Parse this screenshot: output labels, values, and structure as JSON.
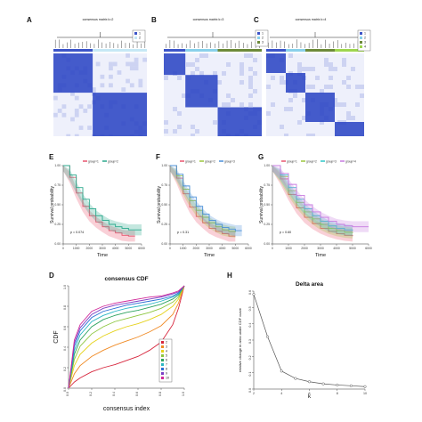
{
  "figure": {
    "panel_labels": [
      "A",
      "B",
      "C",
      "E",
      "F",
      "G",
      "D",
      "H"
    ]
  },
  "heatmaps": [
    {
      "title": "consensus matrix k=2",
      "legend": [
        "1",
        "2"
      ],
      "colors": [
        "#3d55c8",
        "#c6e8f5"
      ]
    },
    {
      "title": "consensus matrix k=3",
      "legend": [
        "1",
        "2",
        "3"
      ],
      "colors": [
        "#3d55c8",
        "#8ad1ea",
        "#6d8a3a"
      ]
    },
    {
      "title": "consensus matrix k=4",
      "legend": [
        "1",
        "2",
        "3",
        "4"
      ],
      "colors": [
        "#3d55c8",
        "#8ad1ea",
        "#6d8a3a",
        "#9ed64e"
      ]
    }
  ],
  "chart_data": [
    {
      "type": "line",
      "panel": "E",
      "xlabel": "Time",
      "ylabel": "Survival probability",
      "xlim": [
        0,
        6000
      ],
      "ylim": [
        0,
        1
      ],
      "x_ticks": [
        "0",
        "1000",
        "2000",
        "3000",
        "4000",
        "5000",
        "6000"
      ],
      "y_ticks": [
        "0.00",
        "0.25",
        "0.50",
        "0.75",
        "1.00"
      ],
      "legend": [
        "group=1",
        "group=2"
      ],
      "annotation": "p = 0.074",
      "series": [
        {
          "name": "group=1",
          "color": "#e8556f",
          "x": [
            0,
            500,
            1000,
            1500,
            2000,
            2500,
            3000,
            3500,
            4000,
            4500,
            5000,
            5500
          ],
          "values": [
            1.0,
            0.85,
            0.65,
            0.48,
            0.36,
            0.28,
            0.22,
            0.17,
            0.14,
            0.11,
            0.1,
            0.1
          ]
        },
        {
          "name": "group=2",
          "color": "#2aa88c",
          "x": [
            0,
            500,
            1000,
            1500,
            2000,
            2500,
            3000,
            3500,
            4000,
            4500,
            5000,
            5500,
            6000
          ],
          "values": [
            1.0,
            0.88,
            0.72,
            0.57,
            0.45,
            0.36,
            0.3,
            0.25,
            0.22,
            0.2,
            0.18,
            0.18,
            0.18
          ]
        }
      ]
    },
    {
      "type": "line",
      "panel": "F",
      "xlabel": "Time",
      "ylabel": "Survival probability",
      "xlim": [
        0,
        6000
      ],
      "ylim": [
        0,
        1
      ],
      "x_ticks": [
        "0",
        "1000",
        "2000",
        "3000",
        "4000",
        "5000",
        "6000"
      ],
      "y_ticks": [
        "0.00",
        "0.25",
        "0.50",
        "0.75",
        "1.00"
      ],
      "legend": [
        "group=1",
        "group=2",
        "group=3"
      ],
      "annotation": "p = 0.31",
      "series": [
        {
          "name": "group=1",
          "color": "#e8556f",
          "x": [
            0,
            500,
            1000,
            1500,
            2000,
            2500,
            3000,
            3500,
            4000,
            4500,
            5000
          ],
          "values": [
            1.0,
            0.84,
            0.64,
            0.47,
            0.35,
            0.27,
            0.2,
            0.16,
            0.13,
            0.1,
            0.1
          ]
        },
        {
          "name": "group=2",
          "color": "#9bc53d",
          "x": [
            0,
            500,
            1000,
            1500,
            2000,
            2500,
            3000,
            3500,
            4000,
            4500,
            5000
          ],
          "values": [
            1.0,
            0.87,
            0.7,
            0.55,
            0.43,
            0.34,
            0.27,
            0.22,
            0.18,
            0.16,
            0.15
          ]
        },
        {
          "name": "group=3",
          "color": "#4a8fd8",
          "x": [
            0,
            500,
            1000,
            1500,
            2000,
            2500,
            3000,
            3500,
            4000,
            4500,
            5000,
            5500
          ],
          "values": [
            1.0,
            0.89,
            0.74,
            0.6,
            0.48,
            0.38,
            0.3,
            0.25,
            0.21,
            0.19,
            0.17,
            0.17
          ]
        }
      ]
    },
    {
      "type": "line",
      "panel": "G",
      "xlabel": "Time",
      "ylabel": "Survival probability",
      "xlim": [
        0,
        6000
      ],
      "ylim": [
        0,
        1
      ],
      "x_ticks": [
        "0",
        "1000",
        "2000",
        "3000",
        "4000",
        "5000",
        "6000"
      ],
      "y_ticks": [
        "0.00",
        "0.25",
        "0.50",
        "0.75",
        "1.00"
      ],
      "legend": [
        "group=1",
        "group=2",
        "group=3",
        "group=4"
      ],
      "annotation": "p = 0.60",
      "series": [
        {
          "name": "group=1",
          "color": "#e8556f",
          "x": [
            0,
            500,
            1000,
            1500,
            2000,
            2500,
            3000,
            3500,
            4000,
            4500,
            5000
          ],
          "values": [
            1.0,
            0.83,
            0.63,
            0.46,
            0.34,
            0.26,
            0.2,
            0.16,
            0.13,
            0.11,
            0.1
          ]
        },
        {
          "name": "group=2",
          "color": "#9bc53d",
          "x": [
            0,
            500,
            1000,
            1500,
            2000,
            2500,
            3000,
            3500,
            4000,
            4500,
            5000
          ],
          "values": [
            1.0,
            0.86,
            0.68,
            0.53,
            0.41,
            0.32,
            0.25,
            0.2,
            0.17,
            0.15,
            0.14
          ]
        },
        {
          "name": "group=3",
          "color": "#2fc7c9",
          "x": [
            0,
            500,
            1000,
            1500,
            2000,
            2500,
            3000,
            3500,
            4000,
            4500,
            5000
          ],
          "values": [
            1.0,
            0.88,
            0.72,
            0.57,
            0.45,
            0.36,
            0.29,
            0.23,
            0.2,
            0.18,
            0.17
          ]
        },
        {
          "name": "group=4",
          "color": "#c77be0",
          "x": [
            0,
            500,
            1000,
            1500,
            2000,
            2500,
            3000,
            3500,
            4000,
            4500,
            5000,
            5500,
            6000
          ],
          "values": [
            1.0,
            0.9,
            0.76,
            0.62,
            0.5,
            0.41,
            0.34,
            0.29,
            0.25,
            0.23,
            0.22,
            0.22,
            0.22
          ]
        }
      ]
    },
    {
      "type": "line",
      "panel": "D",
      "title": "consensus CDF",
      "xlabel": "consensus index",
      "ylabel": "CDF",
      "xlim": [
        0,
        1
      ],
      "ylim": [
        0,
        1
      ],
      "x_ticks": [
        "0.0",
        "0.2",
        "0.4",
        "0.6",
        "0.8",
        "1.0"
      ],
      "y_ticks": [
        "0.0",
        "0.2",
        "0.4",
        "0.6",
        "0.8",
        "1.0"
      ],
      "legend": [
        "2",
        "3",
        "4",
        "5",
        "6",
        "7",
        "8",
        "9",
        "10"
      ],
      "x": [
        0,
        0.05,
        0.1,
        0.2,
        0.3,
        0.4,
        0.5,
        0.6,
        0.7,
        0.8,
        0.9,
        0.95,
        1.0
      ],
      "series": [
        {
          "name": "2",
          "color": "#d7263d",
          "values": [
            0.0,
            0.06,
            0.1,
            0.16,
            0.2,
            0.23,
            0.27,
            0.31,
            0.37,
            0.45,
            0.62,
            0.78,
            1.0
          ]
        },
        {
          "name": "3",
          "color": "#f08a24",
          "values": [
            0.0,
            0.14,
            0.22,
            0.31,
            0.37,
            0.42,
            0.46,
            0.5,
            0.55,
            0.61,
            0.72,
            0.83,
            1.0
          ]
        },
        {
          "name": "4",
          "color": "#e5d21a",
          "values": [
            0.0,
            0.22,
            0.33,
            0.44,
            0.51,
            0.56,
            0.6,
            0.63,
            0.67,
            0.72,
            0.8,
            0.87,
            1.0
          ]
        },
        {
          "name": "5",
          "color": "#8cc63f",
          "values": [
            0.0,
            0.28,
            0.41,
            0.53,
            0.6,
            0.65,
            0.68,
            0.71,
            0.74,
            0.78,
            0.84,
            0.89,
            1.0
          ]
        },
        {
          "name": "6",
          "color": "#2ca25f",
          "values": [
            0.0,
            0.33,
            0.47,
            0.6,
            0.67,
            0.71,
            0.74,
            0.76,
            0.79,
            0.82,
            0.87,
            0.91,
            1.0
          ]
        },
        {
          "name": "7",
          "color": "#2bb6c4",
          "values": [
            0.0,
            0.37,
            0.52,
            0.65,
            0.71,
            0.75,
            0.78,
            0.8,
            0.82,
            0.85,
            0.89,
            0.92,
            1.0
          ]
        },
        {
          "name": "8",
          "color": "#2b6fd6",
          "values": [
            0.0,
            0.41,
            0.56,
            0.69,
            0.75,
            0.78,
            0.81,
            0.83,
            0.85,
            0.87,
            0.9,
            0.93,
            1.0
          ]
        },
        {
          "name": "9",
          "color": "#7b3fc4",
          "values": [
            0.0,
            0.44,
            0.59,
            0.72,
            0.78,
            0.81,
            0.83,
            0.85,
            0.87,
            0.89,
            0.92,
            0.94,
            1.0
          ]
        },
        {
          "name": "10",
          "color": "#d12a9a",
          "values": [
            0.0,
            0.47,
            0.62,
            0.75,
            0.8,
            0.83,
            0.85,
            0.87,
            0.89,
            0.9,
            0.93,
            0.95,
            1.0
          ]
        }
      ]
    },
    {
      "type": "line",
      "panel": "H",
      "title": "Delta area",
      "xlabel": "k",
      "ylabel": "relative change in area under CDF curve",
      "xlim": [
        2,
        10
      ],
      "ylim": [
        0,
        0.6
      ],
      "x_ticks": [
        "2",
        "4",
        "6",
        "8",
        "10"
      ],
      "y_ticks": [
        "0.0",
        "0.1",
        "0.2",
        "0.3",
        "0.4",
        "0.5",
        "0.6"
      ],
      "series": [
        {
          "color": "#555555",
          "x": [
            2,
            3,
            4,
            5,
            6,
            7,
            8,
            9,
            10
          ],
          "values": [
            0.58,
            0.32,
            0.11,
            0.065,
            0.045,
            0.032,
            0.025,
            0.02,
            0.015
          ]
        }
      ]
    }
  ]
}
